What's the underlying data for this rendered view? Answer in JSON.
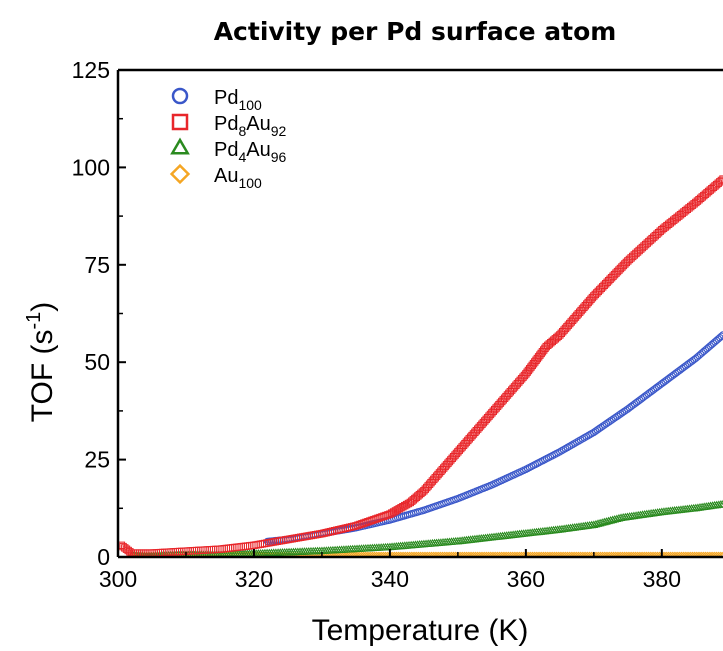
{
  "chart_data": {
    "type": "scatter",
    "title": "Activity per Pd surface atom",
    "xlabel": "Temperature (K)",
    "ylabel": {
      "base": "TOF (s",
      "sup": "-1",
      "tail": ")"
    },
    "xlim": [
      300,
      389
    ],
    "ylim": [
      0,
      125
    ],
    "xticks": [
      300,
      320,
      340,
      360,
      380
    ],
    "yticks": [
      0,
      25,
      50,
      75,
      100,
      125
    ],
    "grid": false,
    "legend_position": "top-left",
    "series": [
      {
        "name": "Pd100",
        "label_parts": [
          {
            "t": "Pd",
            "s": ""
          },
          {
            "t": "100",
            "s": "sub"
          }
        ],
        "marker": "circle",
        "color": "#3a57c9",
        "x": [
          322,
          325,
          330,
          335,
          340,
          342,
          345,
          350,
          355,
          360,
          365,
          370,
          375,
          380,
          385,
          389
        ],
        "y": [
          4,
          4.5,
          6,
          7.5,
          9.5,
          10.5,
          12,
          15,
          18.5,
          22.5,
          27,
          32,
          38,
          44.5,
          51,
          57
        ]
      },
      {
        "name": "Pd8Au92",
        "label_parts": [
          {
            "t": "Pd",
            "s": ""
          },
          {
            "t": "8",
            "s": "sub"
          },
          {
            "t": "Au",
            "s": ""
          },
          {
            "t": "92",
            "s": "sub"
          }
        ],
        "marker": "square",
        "color": "#e8262a",
        "x": [
          300.5,
          302,
          305,
          310,
          315,
          320,
          325,
          330,
          335,
          340,
          343,
          345,
          350,
          355,
          360,
          363,
          365,
          370,
          375,
          380,
          385,
          389
        ],
        "y": [
          3,
          1,
          1,
          1.5,
          2,
          3,
          4.5,
          6,
          8,
          11,
          14,
          17,
          27,
          37,
          47,
          54,
          57,
          67,
          76,
          84,
          91,
          97
        ]
      },
      {
        "name": "Pd4Au96",
        "label_parts": [
          {
            "t": "Pd",
            "s": ""
          },
          {
            "t": "4",
            "s": "sub"
          },
          {
            "t": "Au",
            "s": ""
          },
          {
            "t": "96",
            "s": "sub"
          }
        ],
        "marker": "triangle",
        "color": "#2a8a1f",
        "x": [
          302,
          310,
          320,
          330,
          340,
          350,
          360,
          365,
          370,
          374,
          380,
          385,
          389
        ],
        "y": [
          0.2,
          0.4,
          0.8,
          1.5,
          2.5,
          4,
          6,
          7,
          8.2,
          10,
          11.5,
          12.5,
          13.5
        ]
      },
      {
        "name": "Au100",
        "label_parts": [
          {
            "t": "Au",
            "s": ""
          },
          {
            "t": "100",
            "s": "sub"
          }
        ],
        "marker": "diamond",
        "color": "#f5a623",
        "x": [
          302,
          310,
          320,
          330,
          340,
          350,
          360,
          370,
          380,
          389
        ],
        "y": [
          0.2,
          0.2,
          0.2,
          0.2,
          0.2,
          0.2,
          0.2,
          0.2,
          0.2,
          0.2
        ]
      }
    ]
  }
}
